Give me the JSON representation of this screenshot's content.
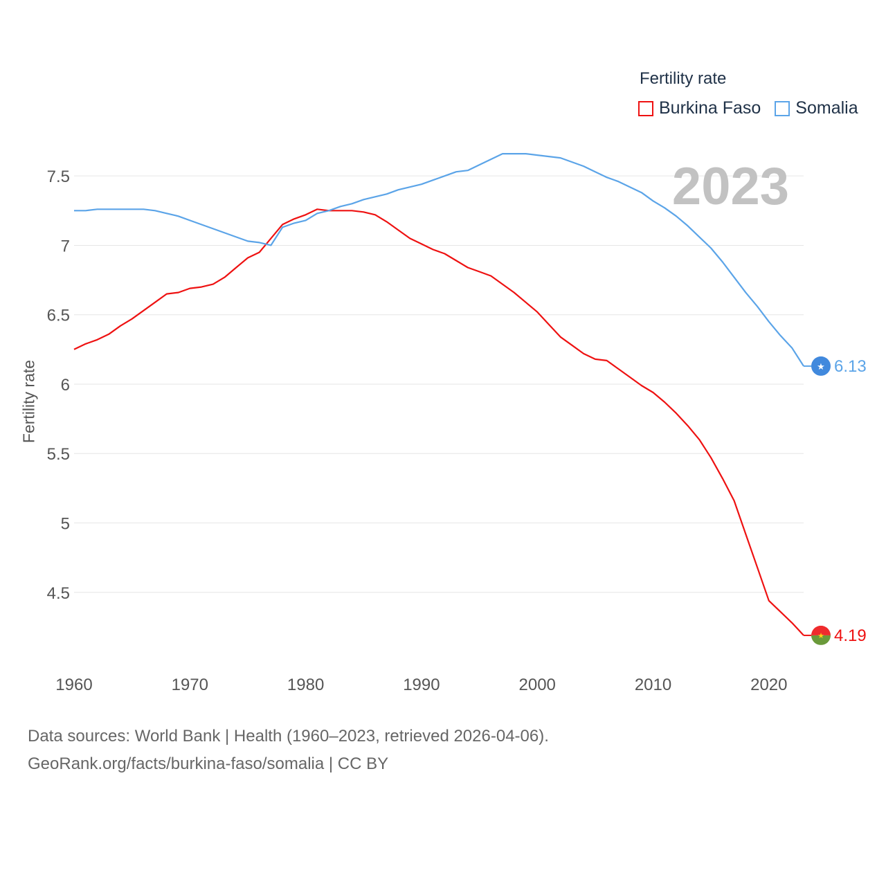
{
  "legend": {
    "title": "Fertility rate",
    "items": [
      {
        "label": "Burkina Faso",
        "color": "#ee1111"
      },
      {
        "label": "Somalia",
        "color": "#5ba4e8"
      }
    ]
  },
  "year_label": "2023",
  "source": {
    "line1": "Data sources: World Bank | Health (1960–2023, retrieved 2026-04-06).",
    "line2": "GeoRank.org/facts/burkina-faso/somalia | CC BY"
  },
  "chart_data": {
    "type": "line",
    "title": "Fertility rate",
    "xlabel": "",
    "ylabel": "Fertility rate",
    "xlim": [
      1960,
      2023
    ],
    "ylim": [
      4.05,
      7.85
    ],
    "x_ticks": [
      1960,
      1970,
      1980,
      1990,
      2000,
      2010,
      2020
    ],
    "y_ticks": [
      4.5,
      5,
      5.5,
      6,
      6.5,
      7,
      7.5
    ],
    "y_tick_labels": [
      "4.5",
      "5",
      "5.5",
      "6",
      "6.5",
      "7",
      "7.5"
    ],
    "grid": true,
    "series": [
      {
        "name": "Burkina Faso",
        "color": "#ee1111",
        "end_label": "4.19",
        "points": [
          [
            1960,
            6.25
          ],
          [
            1961,
            6.29
          ],
          [
            1962,
            6.32
          ],
          [
            1963,
            6.36
          ],
          [
            1964,
            6.42
          ],
          [
            1965,
            6.47
          ],
          [
            1966,
            6.53
          ],
          [
            1967,
            6.59
          ],
          [
            1968,
            6.65
          ],
          [
            1969,
            6.66
          ],
          [
            1970,
            6.69
          ],
          [
            1971,
            6.7
          ],
          [
            1972,
            6.72
          ],
          [
            1973,
            6.77
          ],
          [
            1974,
            6.84
          ],
          [
            1975,
            6.91
          ],
          [
            1976,
            6.95
          ],
          [
            1977,
            7.05
          ],
          [
            1978,
            7.15
          ],
          [
            1979,
            7.19
          ],
          [
            1980,
            7.22
          ],
          [
            1981,
            7.26
          ],
          [
            1982,
            7.25
          ],
          [
            1983,
            7.25
          ],
          [
            1984,
            7.25
          ],
          [
            1985,
            7.24
          ],
          [
            1986,
            7.22
          ],
          [
            1987,
            7.17
          ],
          [
            1988,
            7.11
          ],
          [
            1989,
            7.05
          ],
          [
            1990,
            7.01
          ],
          [
            1991,
            6.97
          ],
          [
            1992,
            6.94
          ],
          [
            1993,
            6.89
          ],
          [
            1994,
            6.84
          ],
          [
            1995,
            6.81
          ],
          [
            1996,
            6.78
          ],
          [
            1997,
            6.72
          ],
          [
            1998,
            6.66
          ],
          [
            1999,
            6.59
          ],
          [
            2000,
            6.52
          ],
          [
            2001,
            6.43
          ],
          [
            2002,
            6.34
          ],
          [
            2003,
            6.28
          ],
          [
            2004,
            6.22
          ],
          [
            2005,
            6.18
          ],
          [
            2006,
            6.17
          ],
          [
            2007,
            6.11
          ],
          [
            2008,
            6.05
          ],
          [
            2009,
            5.99
          ],
          [
            2010,
            5.94
          ],
          [
            2011,
            5.87
          ],
          [
            2012,
            5.79
          ],
          [
            2013,
            5.7
          ],
          [
            2014,
            5.6
          ],
          [
            2015,
            5.47
          ],
          [
            2016,
            5.32
          ],
          [
            2017,
            5.16
          ],
          [
            2018,
            4.92
          ],
          [
            2019,
            4.68
          ],
          [
            2020,
            4.44
          ],
          [
            2021,
            4.36
          ],
          [
            2022,
            4.28
          ],
          [
            2023,
            4.19
          ]
        ]
      },
      {
        "name": "Somalia",
        "color": "#5ba4e8",
        "end_label": "6.13",
        "points": [
          [
            1960,
            7.25
          ],
          [
            1961,
            7.25
          ],
          [
            1962,
            7.26
          ],
          [
            1963,
            7.26
          ],
          [
            1964,
            7.26
          ],
          [
            1965,
            7.26
          ],
          [
            1966,
            7.26
          ],
          [
            1967,
            7.25
          ],
          [
            1968,
            7.23
          ],
          [
            1969,
            7.21
          ],
          [
            1970,
            7.18
          ],
          [
            1971,
            7.15
          ],
          [
            1972,
            7.12
          ],
          [
            1973,
            7.09
          ],
          [
            1974,
            7.06
          ],
          [
            1975,
            7.03
          ],
          [
            1976,
            7.02
          ],
          [
            1977,
            7.0
          ],
          [
            1978,
            7.13
          ],
          [
            1979,
            7.16
          ],
          [
            1980,
            7.18
          ],
          [
            1981,
            7.23
          ],
          [
            1982,
            7.25
          ],
          [
            1983,
            7.28
          ],
          [
            1984,
            7.3
          ],
          [
            1985,
            7.33
          ],
          [
            1986,
            7.35
          ],
          [
            1987,
            7.37
          ],
          [
            1988,
            7.4
          ],
          [
            1989,
            7.42
          ],
          [
            1990,
            7.44
          ],
          [
            1991,
            7.47
          ],
          [
            1992,
            7.5
          ],
          [
            1993,
            7.53
          ],
          [
            1994,
            7.54
          ],
          [
            1995,
            7.58
          ],
          [
            1996,
            7.62
          ],
          [
            1997,
            7.66
          ],
          [
            1998,
            7.66
          ],
          [
            1999,
            7.66
          ],
          [
            2000,
            7.65
          ],
          [
            2001,
            7.64
          ],
          [
            2002,
            7.63
          ],
          [
            2003,
            7.6
          ],
          [
            2004,
            7.57
          ],
          [
            2005,
            7.53
          ],
          [
            2006,
            7.49
          ],
          [
            2007,
            7.46
          ],
          [
            2008,
            7.42
          ],
          [
            2009,
            7.38
          ],
          [
            2010,
            7.32
          ],
          [
            2011,
            7.27
          ],
          [
            2012,
            7.21
          ],
          [
            2013,
            7.14
          ],
          [
            2014,
            7.06
          ],
          [
            2015,
            6.98
          ],
          [
            2016,
            6.88
          ],
          [
            2017,
            6.77
          ],
          [
            2018,
            6.66
          ],
          [
            2019,
            6.56
          ],
          [
            2020,
            6.45
          ],
          [
            2021,
            6.35
          ],
          [
            2022,
            6.26
          ],
          [
            2023,
            6.13
          ]
        ]
      }
    ]
  }
}
